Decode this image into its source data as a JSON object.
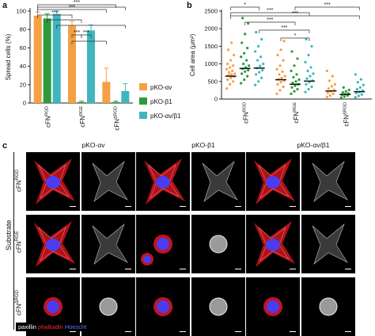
{
  "panel_letters": {
    "a": "a",
    "b": "b",
    "c": "c"
  },
  "chart_data": [
    {
      "type": "bar",
      "panel": "a",
      "ylabel": "Spread cells (%)",
      "ylim": [
        0,
        100
      ],
      "yticks": [
        "0",
        "20",
        "40",
        "60",
        "80",
        "100"
      ],
      "categories": [
        {
          "base": "cFN",
          "sup": "RGD"
        },
        {
          "base": "cFN",
          "sup": "RGE"
        },
        {
          "base": "cFN",
          "sup": "ΔRGD"
        }
      ],
      "series": [
        {
          "name": "pKO-αv",
          "color": "#f5a045",
          "values": [
            95,
            84,
            23
          ],
          "errors": [
            4,
            5,
            15
          ]
        },
        {
          "name": "pKO-β1",
          "color": "#2e9a3e",
          "values": [
            92,
            1,
            1
          ],
          "errors": [
            5,
            1,
            1
          ]
        },
        {
          "name": "pKO-αv/β1",
          "color": "#3fb6bd",
          "values": [
            97,
            79,
            13
          ],
          "errors": [
            3,
            6,
            8
          ]
        }
      ],
      "significance": [
        "***",
        "***",
        "***",
        "***",
        "***"
      ],
      "legend_position": "right"
    },
    {
      "type": "scatter",
      "panel": "b",
      "ylabel": "Cell area (µm²)",
      "ylim": [
        0,
        2500
      ],
      "yticks": [
        "0",
        "500",
        "1000",
        "1500",
        "2000",
        "2500"
      ],
      "categories": [
        {
          "base": "cFN",
          "sup": "RGD"
        },
        {
          "base": "cFN",
          "sup": "RGE"
        },
        {
          "base": "cFN",
          "sup": "ΔRGD"
        }
      ],
      "series": [
        {
          "color": "#f5a045",
          "medians": [
            650,
            550,
            230
          ],
          "points": [
            [
              300,
              420,
              500,
              550,
              600,
              640,
              680,
              700,
              720,
              760,
              800,
              850,
              900,
              950,
              1000,
              1100,
              1250,
              1400,
              1600
            ],
            [
              150,
              250,
              350,
              420,
              480,
              520,
              560,
              600,
              650,
              700,
              780,
              850,
              950,
              1100,
              1250,
              1400,
              1650
            ],
            [
              60,
              100,
              150,
              180,
              220,
              260,
              300,
              360,
              420,
              520,
              650,
              800
            ]
          ]
        },
        {
          "color": "#2e9a3e",
          "medians": [
            870,
            420,
            130
          ],
          "points": [
            [
              450,
              550,
              650,
              720,
              780,
              820,
              860,
              900,
              950,
              1000,
              1100,
              1200,
              1300,
              1450,
              1600,
              1850,
              2150,
              2300
            ],
            [
              150,
              220,
              280,
              330,
              380,
              420,
              460,
              500,
              550,
              620,
              700,
              800,
              950,
              1150,
              1350
            ],
            [
              40,
              70,
              100,
              120,
              140,
              160,
              190,
              220,
              260,
              330
            ]
          ]
        },
        {
          "color": "#3fb6bd",
          "medians": [
            880,
            510,
            210
          ],
          "points": [
            [
              400,
              500,
              600,
              700,
              760,
              820,
              880,
              940,
              1000,
              1100,
              1200,
              1350,
              1500,
              1700,
              1900
            ],
            [
              200,
              280,
              350,
              420,
              480,
              520,
              580,
              650,
              720,
              800,
              900,
              1050,
              1250,
              1500,
              1700
            ],
            [
              50,
              90,
              130,
              170,
              200,
              240,
              280,
              330,
              400,
              480,
              560,
              700
            ]
          ]
        }
      ],
      "significance": [
        "*",
        "***",
        "***",
        "***",
        "***",
        "***",
        "*"
      ]
    }
  ],
  "panel_c": {
    "columns": [
      "pKO-αv",
      "pKO-β1",
      "pKO-αv/β1"
    ],
    "rows": [
      {
        "base": "cFN",
        "sup": "RGD"
      },
      {
        "base": "cFN",
        "sup": "RGE"
      },
      {
        "base": "cFN",
        "sup": "ΔRGD"
      }
    ],
    "side_label": "Substrate",
    "stain_legend": [
      {
        "text": "paxillin",
        "color": "#ffffff"
      },
      {
        "text": "phalloidin",
        "color": "#ff2222"
      },
      {
        "text": "Hoescht",
        "color": "#4a6bff"
      }
    ]
  }
}
